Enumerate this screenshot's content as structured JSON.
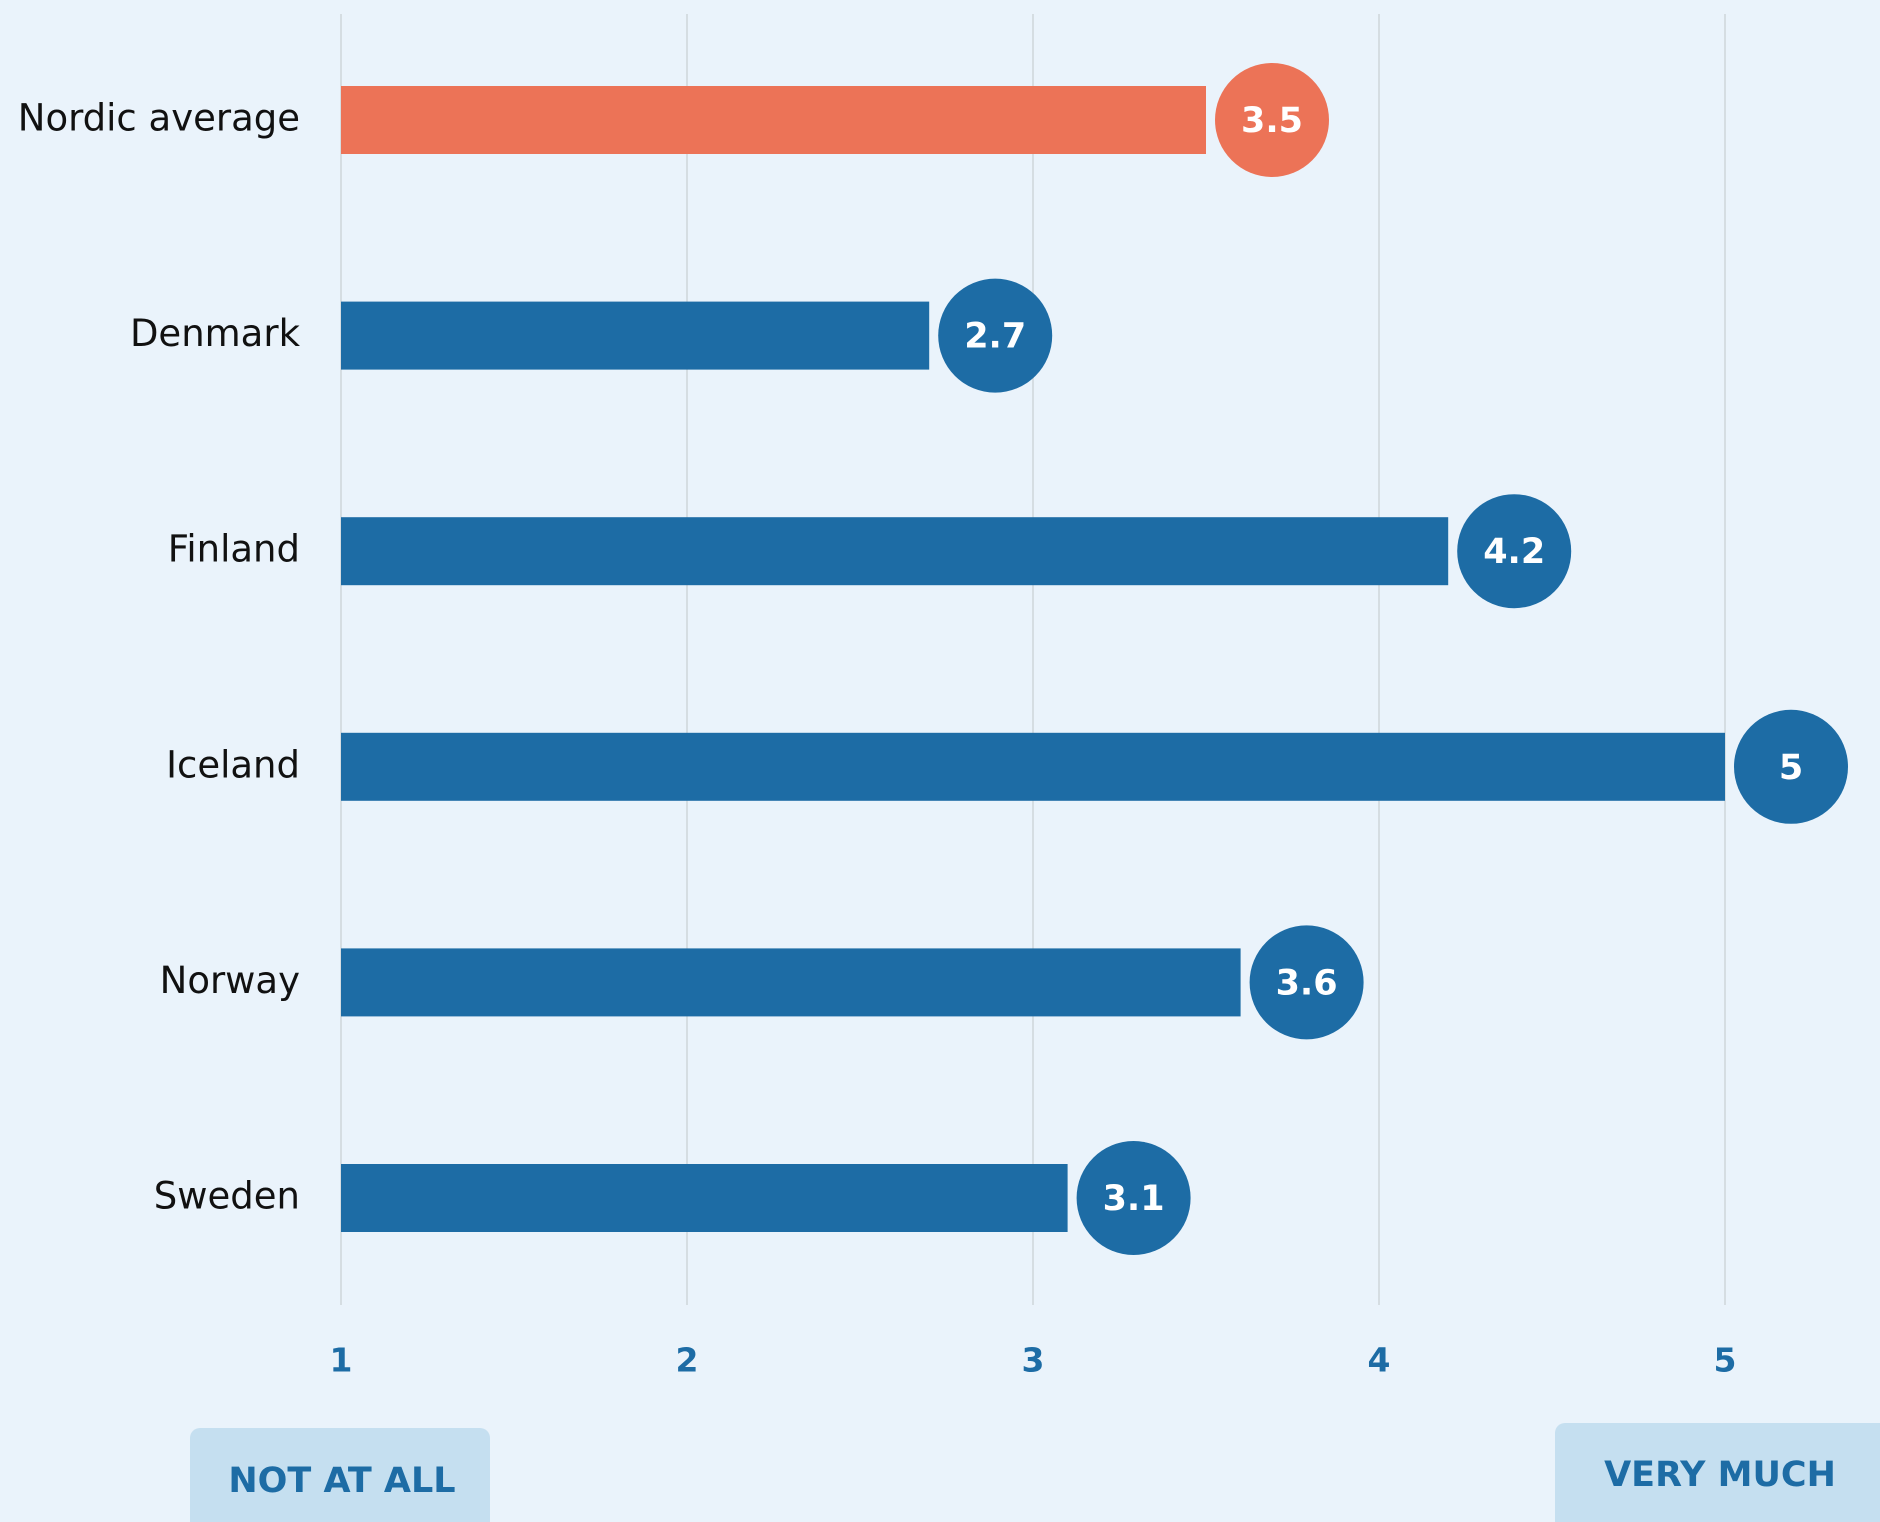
{
  "chart_data": {
    "type": "bar",
    "orientation": "horizontal",
    "categories": [
      "Nordic average",
      "Denmark",
      "Finland",
      "Iceland",
      "Norway",
      "Sweden"
    ],
    "values": [
      3.5,
      2.7,
      4.2,
      5,
      3.6,
      3.1
    ],
    "colors": [
      "#ec7357",
      "#1d6ca5",
      "#1d6ca5",
      "#1d6ca5",
      "#1d6ca5",
      "#1d6ca5"
    ],
    "xlim": [
      1,
      5
    ],
    "xticks": [
      1,
      2,
      3,
      4,
      5
    ],
    "grid": true,
    "annotations": [
      "NOT AT ALL",
      "VERY MUCH"
    ]
  }
}
